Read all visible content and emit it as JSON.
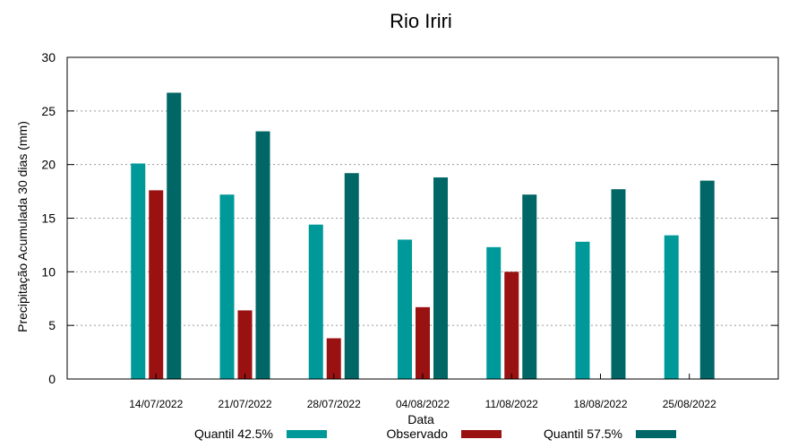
{
  "chart_data": {
    "type": "bar",
    "title": "Rio Iriri",
    "xlabel": "Data",
    "ylabel": "Precipitação Acumulada 30 dias (mm)",
    "ylim": [
      0,
      30
    ],
    "yticks": [
      0,
      5,
      10,
      15,
      20,
      25,
      30
    ],
    "grid": true,
    "legend_position": "bottom",
    "categories": [
      "14/07/2022",
      "21/07/2022",
      "28/07/2022",
      "04/08/2022",
      "11/08/2022",
      "18/08/2022",
      "25/08/2022"
    ],
    "series": [
      {
        "name": "Quantil 42.5%",
        "color": "#009999",
        "values": [
          20.1,
          17.2,
          14.4,
          13.0,
          12.3,
          12.8,
          13.4
        ]
      },
      {
        "name": "Observado",
        "color": "#991111",
        "values": [
          17.6,
          6.4,
          3.8,
          6.7,
          10.0,
          null,
          null
        ]
      },
      {
        "name": "Quantil 57.5%",
        "color": "#006666",
        "values": [
          26.7,
          23.1,
          19.2,
          18.8,
          17.2,
          17.7,
          18.5
        ]
      }
    ]
  }
}
